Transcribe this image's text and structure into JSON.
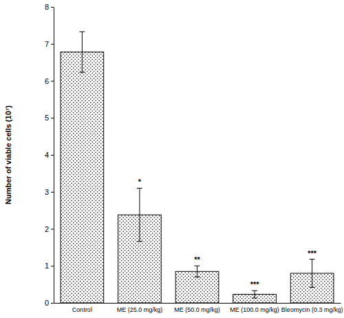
{
  "chart_data": {
    "type": "bar",
    "y_label": "Number of viable cells (10⁷)",
    "categories": [
      "Control",
      "ME (25.0 mg/kg)",
      "ME (50.0 mg/kg)",
      "ME (100.0 mg/kg)",
      "Bleomycin (0.3 mg/kg)"
    ],
    "values": [
      6.78,
      2.38,
      0.85,
      0.23,
      0.8
    ],
    "errors": [
      0.55,
      0.72,
      0.15,
      0.1,
      0.38
    ],
    "significance": [
      null,
      "*",
      "**",
      "***",
      "***"
    ],
    "color": "#000000",
    "ylim": [
      0,
      8
    ],
    "yticks": [
      0,
      1,
      2,
      3,
      4,
      5,
      6,
      7,
      8
    ],
    "grid": false
  }
}
